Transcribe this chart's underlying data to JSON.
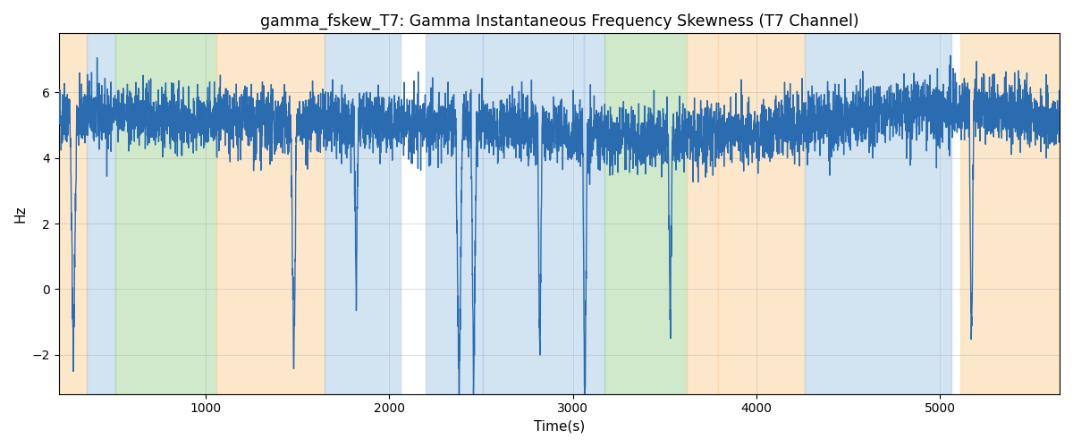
{
  "title": "gamma_fskew_T7: Gamma Instantaneous Frequency Skewness (T7 Channel)",
  "xlabel": "Time(s)",
  "ylabel": "Hz",
  "xlim": [
    200,
    5650
  ],
  "ylim": [
    -3.2,
    7.8
  ],
  "line_color": "#2b6cb0",
  "line_width": 1.0,
  "bands": [
    {
      "xmin": 200,
      "xmax": 355,
      "color": "#fdd5a0",
      "alpha": 0.55
    },
    {
      "xmin": 355,
      "xmax": 510,
      "color": "#aecde8",
      "alpha": 0.55
    },
    {
      "xmin": 510,
      "xmax": 1060,
      "color": "#a8d8a0",
      "alpha": 0.55
    },
    {
      "xmin": 1060,
      "xmax": 1650,
      "color": "#fdd5a0",
      "alpha": 0.55
    },
    {
      "xmin": 1650,
      "xmax": 2060,
      "color": "#aecde8",
      "alpha": 0.55
    },
    {
      "xmin": 2200,
      "xmax": 2510,
      "color": "#aecde8",
      "alpha": 0.55
    },
    {
      "xmin": 2510,
      "xmax": 3060,
      "color": "#aecde8",
      "alpha": 0.55
    },
    {
      "xmin": 3060,
      "xmax": 3170,
      "color": "#aecde8",
      "alpha": 0.55
    },
    {
      "xmin": 3170,
      "xmax": 3620,
      "color": "#a8d8a0",
      "alpha": 0.55
    },
    {
      "xmin": 3620,
      "xmax": 3790,
      "color": "#fdd5a0",
      "alpha": 0.55
    },
    {
      "xmin": 3790,
      "xmax": 4260,
      "color": "#fdd5a0",
      "alpha": 0.55
    },
    {
      "xmin": 4260,
      "xmax": 5060,
      "color": "#aecde8",
      "alpha": 0.55
    },
    {
      "xmin": 5110,
      "xmax": 5650,
      "color": "#fdd5a0",
      "alpha": 0.55
    }
  ],
  "yticks": [
    -2,
    0,
    2,
    4,
    6
  ],
  "xticks": [
    1000,
    2000,
    3000,
    4000,
    5000
  ],
  "grid_color": "#b0b0b0",
  "grid_alpha": 0.6,
  "grid_lw": 0.5,
  "seed": 42,
  "n_points": 5450,
  "time_start": 200,
  "time_end": 5650
}
